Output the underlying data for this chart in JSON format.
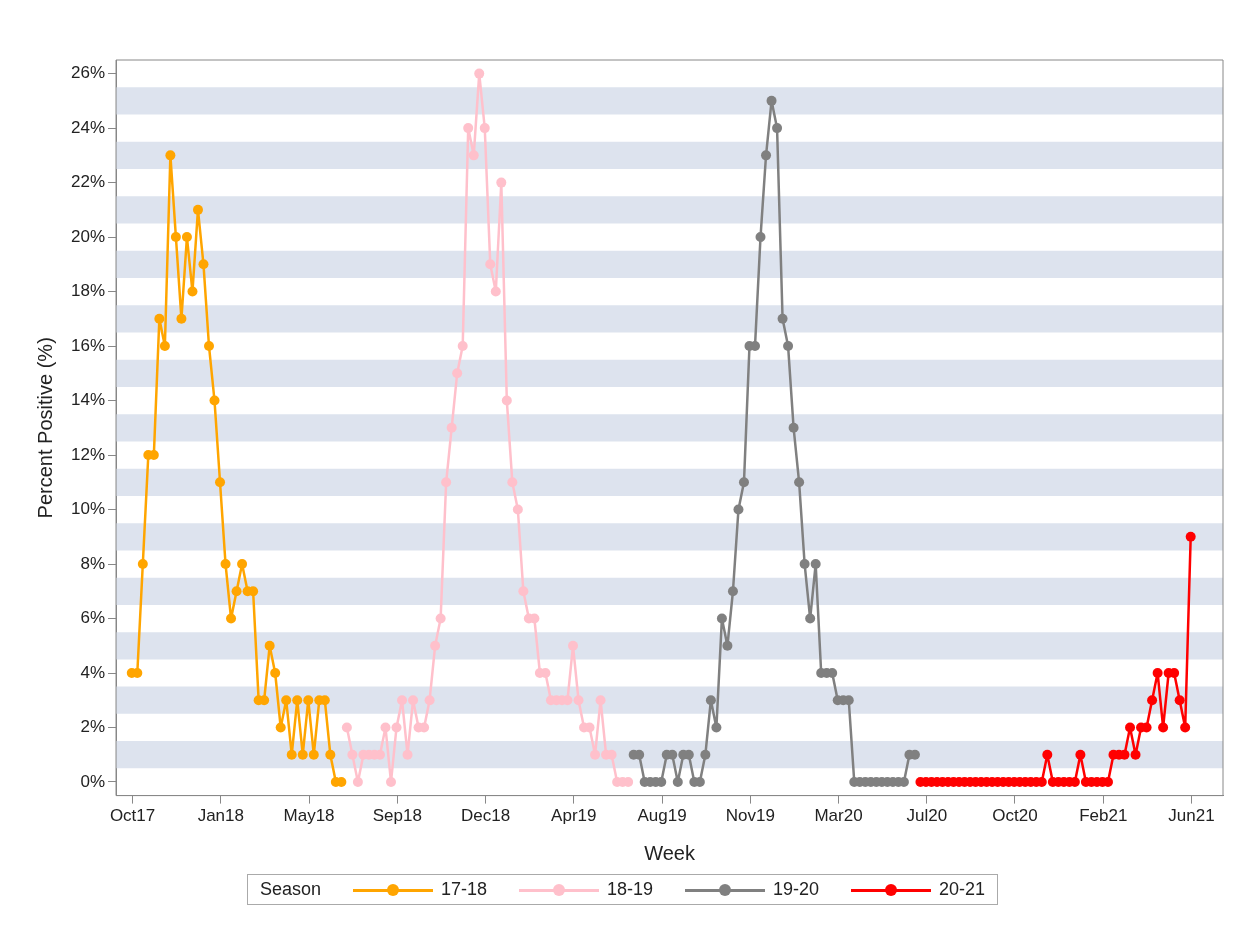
{
  "chart_data": {
    "type": "line",
    "xlabel": "Week",
    "ylabel": "Percent Positive (%)",
    "legend_title": "Season",
    "legend": "bottom",
    "marker": "circle",
    "line_style": "solid",
    "xlim": [
      "2017-09-10",
      "2021-07-16"
    ],
    "xticks": [
      {
        "value": "2017-10-01",
        "label": "Oct17"
      },
      {
        "value": "2018-01-21",
        "label": "Jan18"
      },
      {
        "value": "2018-05-13",
        "label": "May18"
      },
      {
        "value": "2018-09-02",
        "label": "Sep18"
      },
      {
        "value": "2018-12-23",
        "label": "Dec18"
      },
      {
        "value": "2019-04-14",
        "label": "Apr19"
      },
      {
        "value": "2019-08-04",
        "label": "Aug19"
      },
      {
        "value": "2019-11-24",
        "label": "Nov19"
      },
      {
        "value": "2020-03-15",
        "label": "Mar20"
      },
      {
        "value": "2020-07-05",
        "label": "Jul20"
      },
      {
        "value": "2020-10-25",
        "label": "Oct20"
      },
      {
        "value": "2021-02-14",
        "label": "Feb21"
      },
      {
        "value": "2021-06-06",
        "label": "Jun21"
      }
    ],
    "ylim": [
      -0.5,
      26.5
    ],
    "yticks": [
      {
        "value": 0,
        "label": "0%"
      },
      {
        "value": 2,
        "label": "2%"
      },
      {
        "value": 4,
        "label": "4%"
      },
      {
        "value": 6,
        "label": "6%"
      },
      {
        "value": 8,
        "label": "8%"
      },
      {
        "value": 10,
        "label": "10%"
      },
      {
        "value": 12,
        "label": "12%"
      },
      {
        "value": 14,
        "label": "14%"
      },
      {
        "value": 16,
        "label": "16%"
      },
      {
        "value": 18,
        "label": "18%"
      },
      {
        "value": 20,
        "label": "20%"
      },
      {
        "value": 22,
        "label": "22%"
      },
      {
        "value": 24,
        "label": "24%"
      },
      {
        "value": 26,
        "label": "26%"
      }
    ],
    "bands": [
      {
        "axis": "y",
        "from": 0.5,
        "to": 1.5,
        "color": "#dde3ee"
      },
      {
        "axis": "y",
        "from": 2.5,
        "to": 3.5,
        "color": "#dde3ee"
      },
      {
        "axis": "y",
        "from": 4.5,
        "to": 5.5,
        "color": "#dde3ee"
      },
      {
        "axis": "y",
        "from": 6.5,
        "to": 7.5,
        "color": "#dde3ee"
      },
      {
        "axis": "y",
        "from": 8.5,
        "to": 9.5,
        "color": "#dde3ee"
      },
      {
        "axis": "y",
        "from": 10.5,
        "to": 11.5,
        "color": "#dde3ee"
      },
      {
        "axis": "y",
        "from": 12.5,
        "to": 13.5,
        "color": "#dde3ee"
      },
      {
        "axis": "y",
        "from": 14.5,
        "to": 15.5,
        "color": "#dde3ee"
      },
      {
        "axis": "y",
        "from": 16.5,
        "to": 17.5,
        "color": "#dde3ee"
      },
      {
        "axis": "y",
        "from": 18.5,
        "to": 19.5,
        "color": "#dde3ee"
      },
      {
        "axis": "y",
        "from": 20.5,
        "to": 21.5,
        "color": "#dde3ee"
      },
      {
        "axis": "y",
        "from": 22.5,
        "to": 23.5,
        "color": "#dde3ee"
      },
      {
        "axis": "y",
        "from": 24.5,
        "to": 25.5,
        "color": "#dde3ee"
      }
    ],
    "series": [
      {
        "name": "17-18",
        "color": "#ffa500",
        "x": [
          "2017-09-30",
          "2017-10-07",
          "2017-10-14",
          "2017-10-21",
          "2017-10-28",
          "2017-11-04",
          "2017-11-11",
          "2017-11-18",
          "2017-11-25",
          "2017-12-02",
          "2017-12-09",
          "2017-12-16",
          "2017-12-23",
          "2017-12-30",
          "2018-01-06",
          "2018-01-13",
          "2018-01-20",
          "2018-01-27",
          "2018-02-03",
          "2018-02-10",
          "2018-02-17",
          "2018-02-24",
          "2018-03-03",
          "2018-03-10",
          "2018-03-17",
          "2018-03-24",
          "2018-03-31",
          "2018-04-07",
          "2018-04-14",
          "2018-04-21",
          "2018-04-28",
          "2018-05-05",
          "2018-05-12",
          "2018-05-19",
          "2018-05-26",
          "2018-06-02",
          "2018-06-09",
          "2018-06-16",
          "2018-06-23"
        ],
        "values": [
          4,
          4,
          8,
          12,
          12,
          17,
          16,
          23,
          20,
          17,
          20,
          18,
          21,
          19,
          16,
          14,
          11,
          8,
          6,
          7,
          8,
          7,
          7,
          3,
          3,
          5,
          4,
          2,
          3,
          1,
          3,
          1,
          3,
          1,
          3,
          3,
          1,
          0,
          0
        ]
      },
      {
        "name": "18-19",
        "color": "#ffc0cb",
        "x": [
          "2018-06-30",
          "2018-07-07",
          "2018-07-14",
          "2018-07-21",
          "2018-07-28",
          "2018-08-04",
          "2018-08-11",
          "2018-08-18",
          "2018-08-25",
          "2018-09-01",
          "2018-09-08",
          "2018-09-15",
          "2018-09-22",
          "2018-09-29",
          "2018-10-06",
          "2018-10-13",
          "2018-10-20",
          "2018-10-27",
          "2018-11-03",
          "2018-11-10",
          "2018-11-17",
          "2018-11-24",
          "2018-12-01",
          "2018-12-08",
          "2018-12-15",
          "2018-12-22",
          "2018-12-29",
          "2019-01-05",
          "2019-01-12",
          "2019-01-19",
          "2019-01-26",
          "2019-02-02",
          "2019-02-09",
          "2019-02-16",
          "2019-02-23",
          "2019-03-02",
          "2019-03-09",
          "2019-03-16",
          "2019-03-23",
          "2019-03-30",
          "2019-04-06",
          "2019-04-13",
          "2019-04-20",
          "2019-04-27",
          "2019-05-04",
          "2019-05-11",
          "2019-05-18",
          "2019-05-25",
          "2019-06-01",
          "2019-06-08",
          "2019-06-15",
          "2019-06-22"
        ],
        "values": [
          2,
          1,
          0,
          1,
          1,
          1,
          1,
          2,
          0,
          2,
          3,
          1,
          3,
          2,
          2,
          3,
          5,
          6,
          11,
          13,
          15,
          16,
          24,
          23,
          26,
          24,
          19,
          18,
          22,
          14,
          11,
          10,
          7,
          6,
          6,
          4,
          4,
          3,
          3,
          3,
          3,
          5,
          3,
          2,
          2,
          1,
          3,
          1,
          1,
          0,
          0,
          0
        ]
      },
      {
        "name": "19-20",
        "color": "#808080",
        "x": [
          "2019-06-29",
          "2019-07-06",
          "2019-07-13",
          "2019-07-20",
          "2019-07-27",
          "2019-08-03",
          "2019-08-10",
          "2019-08-17",
          "2019-08-24",
          "2019-08-31",
          "2019-09-07",
          "2019-09-14",
          "2019-09-21",
          "2019-09-28",
          "2019-10-05",
          "2019-10-12",
          "2019-10-19",
          "2019-10-26",
          "2019-11-02",
          "2019-11-09",
          "2019-11-16",
          "2019-11-23",
          "2019-11-30",
          "2019-12-07",
          "2019-12-14",
          "2019-12-21",
          "2019-12-28",
          "2020-01-04",
          "2020-01-11",
          "2020-01-18",
          "2020-01-25",
          "2020-02-01",
          "2020-02-08",
          "2020-02-15",
          "2020-02-22",
          "2020-02-29",
          "2020-03-07",
          "2020-03-14",
          "2020-03-21",
          "2020-03-28",
          "2020-04-04",
          "2020-04-11",
          "2020-04-18",
          "2020-04-25",
          "2020-05-02",
          "2020-05-09",
          "2020-05-16",
          "2020-05-23",
          "2020-05-30",
          "2020-06-06",
          "2020-06-13",
          "2020-06-20"
        ],
        "values": [
          1,
          1,
          0,
          0,
          0,
          0,
          1,
          1,
          0,
          1,
          1,
          0,
          0,
          1,
          3,
          2,
          6,
          5,
          7,
          10,
          11,
          16,
          16,
          20,
          23,
          25,
          24,
          17,
          16,
          13,
          11,
          8,
          6,
          8,
          4,
          4,
          4,
          3,
          3,
          3,
          0,
          0,
          0,
          0,
          0,
          0,
          0,
          0,
          0,
          0,
          1,
          1
        ]
      },
      {
        "name": "20-21",
        "color": "#ff0000",
        "x": [
          "2020-06-27",
          "2020-07-04",
          "2020-07-11",
          "2020-07-18",
          "2020-07-25",
          "2020-08-01",
          "2020-08-08",
          "2020-08-15",
          "2020-08-22",
          "2020-08-29",
          "2020-09-05",
          "2020-09-12",
          "2020-09-19",
          "2020-09-26",
          "2020-10-03",
          "2020-10-10",
          "2020-10-17",
          "2020-10-24",
          "2020-10-31",
          "2020-11-07",
          "2020-11-14",
          "2020-11-21",
          "2020-11-28",
          "2020-12-05",
          "2020-12-12",
          "2020-12-19",
          "2020-12-26",
          "2021-01-02",
          "2021-01-09",
          "2021-01-16",
          "2021-01-23",
          "2021-01-30",
          "2021-02-06",
          "2021-02-13",
          "2021-02-20",
          "2021-02-27",
          "2021-03-06",
          "2021-03-13",
          "2021-03-20",
          "2021-03-27",
          "2021-04-03",
          "2021-04-10",
          "2021-04-17",
          "2021-04-24",
          "2021-05-01",
          "2021-05-08",
          "2021-05-15",
          "2021-05-22",
          "2021-05-29",
          "2021-06-05"
        ],
        "values": [
          0,
          0,
          0,
          0,
          0,
          0,
          0,
          0,
          0,
          0,
          0,
          0,
          0,
          0,
          0,
          0,
          0,
          0,
          0,
          0,
          0,
          0,
          0,
          1,
          0,
          0,
          0,
          0,
          0,
          1,
          0,
          0,
          0,
          0,
          0,
          1,
          1,
          1,
          2,
          1,
          2,
          2,
          3,
          4,
          2,
          4,
          4,
          3,
          2,
          9
        ]
      }
    ]
  }
}
